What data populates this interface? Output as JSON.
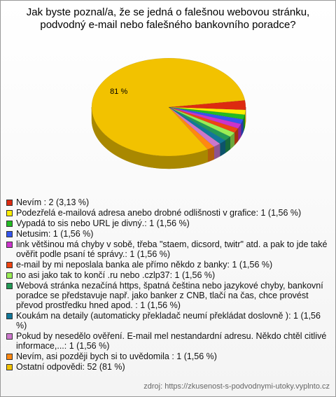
{
  "chart_data": {
    "type": "pie",
    "title": "Jak byste poznal/a, že se jedná o falešnou webovou stránku, podvodný e-mail nebo falešného bankovního poradce?",
    "categories": [
      "Nevím : 2 (3,13 %)",
      "Podezřelá e-mailová adresa anebo drobné odlišnosti v grafice: 1 (1,56 %)",
      "Vypadá to sis nebo URL je divný.: 1 (1,56 %)",
      "Netusim: 1 (1,56 %)",
      "link většinou má chyby v sobě, třeba \"staem, dicsord, twitr\" atd. a pak to jde také ověřit podle psaní té správy.: 1 (1,56 %)",
      "e-mail by mi neposlala banka ale přímo někdo z banky: 1 (1,56 %)",
      "no asi jako tak to končí .ru nebo .czlp37: 1 (1,56 %)",
      "Webová stránka nezačíná https, špatná čeština nebo jazykové chyby, bankovní poradce se představuje např. jako banker z CNB, tlačí na čas, chce provést převod prostředku hned apod. : 1 (1,56 %)",
      "Koukám na detaily (automaticky překladač neumí překládat doslovně ): 1 (1,56 %)",
      "Pokud by nesedělo ověření. E-mail mel nestandardní adresu. Někdo chtěl citlivé informace,...: 1 (1,56 %)",
      "Nevím, asi později bych si to uvědomila : 1 (1,56 %)",
      "Ostatní odpovědi: 52 (81 %)"
    ],
    "values": [
      3.13,
      1.56,
      1.56,
      1.56,
      1.56,
      1.56,
      1.56,
      1.56,
      1.56,
      1.56,
      1.56,
      81
    ],
    "value_labels": [
      null,
      null,
      null,
      null,
      null,
      null,
      null,
      null,
      null,
      null,
      null,
      "81 %"
    ],
    "colors": [
      "#dd2a10",
      "#ffee00",
      "#22bb22",
      "#3355ee",
      "#cc33cc",
      "#ee4411",
      "#99ee55",
      "#229955",
      "#117799",
      "#cc77cc",
      "#ff8811",
      "#f2c200"
    ],
    "source": "zdroj: https://zkusenost-s-podvodnymi-utoky.vyplnto.cz"
  }
}
